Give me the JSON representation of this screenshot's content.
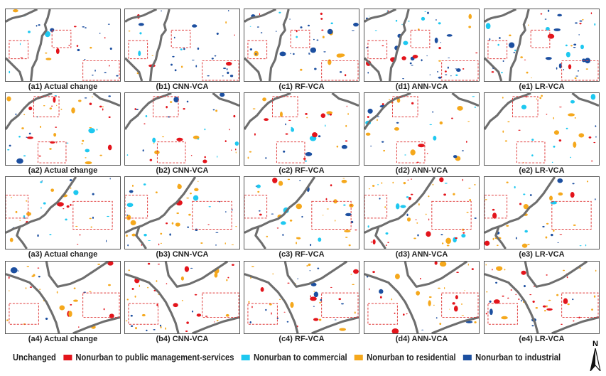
{
  "colors": {
    "public_management_services": "#e3141b",
    "commercial": "#1ec8f0",
    "residential": "#f5a81c",
    "industrial": "#1c4fa0",
    "boundary": "#6e6e6e",
    "highlight_box": "#e03a3a"
  },
  "panels": [
    [
      "(a1) Actual change",
      "(b1) CNN-VCA",
      "(c1) RF-VCA",
      "(d1) ANN-VCA",
      "(e1) LR-VCA"
    ],
    [
      "(a2) Actual change",
      "(b2) CNN-VCA",
      "(c2) RF-VCA",
      "(d2) ANN-VCA",
      "(e2) LR-VCA"
    ],
    [
      "(a3) Actual change",
      "(b3) CNN-VCA",
      "(c3) RF-VCA",
      "(d3) ANN-VCA",
      "(e3) LR-VCA"
    ],
    [
      "(a4) Actual change",
      "(b4) CNN-VCA",
      "(c4) RF-VCA",
      "(d4) ANN-VCA",
      "(e4) LR-VCA"
    ]
  ],
  "legend": {
    "unchanged": "Unchanged",
    "items": [
      {
        "label": "Nonurban to public management-services",
        "color": "#e3141b"
      },
      {
        "label": "Nonurban to commercial",
        "color": "#1ec8f0"
      },
      {
        "label": "Nonurban to residential",
        "color": "#f5a81c"
      },
      {
        "label": "Nonurban to industrial",
        "color": "#1c4fa0"
      }
    ]
  },
  "north_arrow": {
    "label": "N",
    "icon": "north-arrow-icon"
  }
}
